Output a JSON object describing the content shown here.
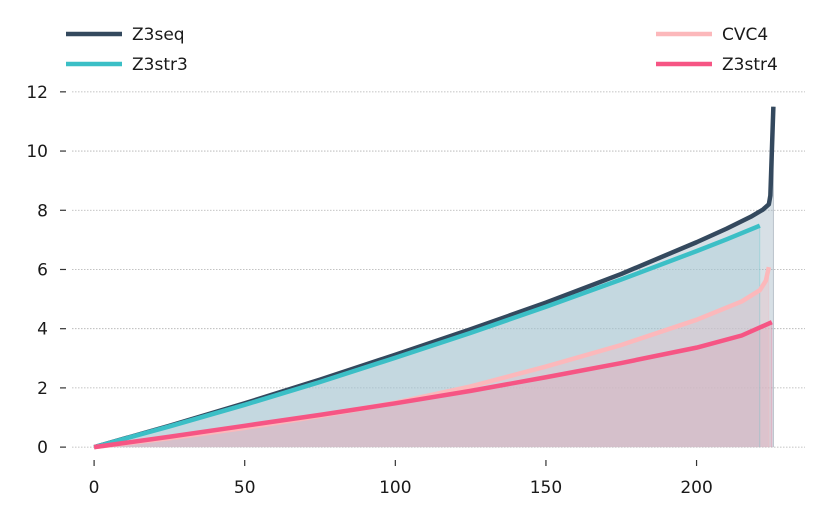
{
  "chart_data": {
    "type": "area",
    "title": "",
    "xlabel": "",
    "ylabel": "",
    "xlim": [
      -8,
      236
    ],
    "ylim": [
      -0.3,
      12.4
    ],
    "x_ticks": [
      0,
      50,
      100,
      150,
      200
    ],
    "y_ticks": [
      0,
      2,
      4,
      6,
      8,
      10,
      12
    ],
    "x_tick_labels": [
      "0",
      "50",
      "100",
      "150",
      "200"
    ],
    "y_tick_labels": [
      "0",
      "2",
      "4",
      "6",
      "8",
      "10",
      "12"
    ],
    "grid": "horizontal",
    "legend_left": [
      "Z3seq",
      "Z3str3"
    ],
    "legend_right": [
      "CVC4",
      "Z3str4"
    ],
    "series": [
      {
        "name": "Z3seq",
        "color": "#34495e",
        "fill": "#9fb6c4",
        "x": [
          0,
          25,
          50,
          75,
          100,
          125,
          150,
          175,
          200,
          210,
          218,
          222,
          224,
          224.5,
          225,
          225.5
        ],
        "y": [
          0,
          0.72,
          1.48,
          2.28,
          3.12,
          3.98,
          4.88,
          5.85,
          6.92,
          7.38,
          7.78,
          8.02,
          8.2,
          8.5,
          10.0,
          11.5
        ]
      },
      {
        "name": "Z3str3",
        "color": "#3bbfc6",
        "fill": "#a9cdd8",
        "x": [
          0,
          25,
          50,
          75,
          100,
          125,
          150,
          175,
          200,
          210,
          221
        ],
        "y": [
          0,
          0.7,
          1.43,
          2.2,
          3.02,
          3.86,
          4.74,
          5.66,
          6.62,
          7.02,
          7.48
        ]
      },
      {
        "name": "CVC4",
        "color": "#fcb8bb",
        "fill": "#e8c2c8",
        "x": [
          0,
          25,
          50,
          75,
          100,
          125,
          150,
          175,
          200,
          215,
          221,
          223,
          224
        ],
        "y": [
          0,
          0.3,
          0.65,
          1.05,
          1.5,
          2.05,
          2.72,
          3.45,
          4.3,
          4.92,
          5.3,
          5.62,
          6.08
        ]
      },
      {
        "name": "Z3str4",
        "color": "#f65584",
        "fill": "#d8aebd",
        "x": [
          0,
          25,
          50,
          75,
          100,
          125,
          150,
          175,
          200,
          215,
          225
        ],
        "y": [
          0,
          0.35,
          0.72,
          1.09,
          1.48,
          1.9,
          2.36,
          2.84,
          3.36,
          3.77,
          4.22
        ]
      }
    ]
  }
}
